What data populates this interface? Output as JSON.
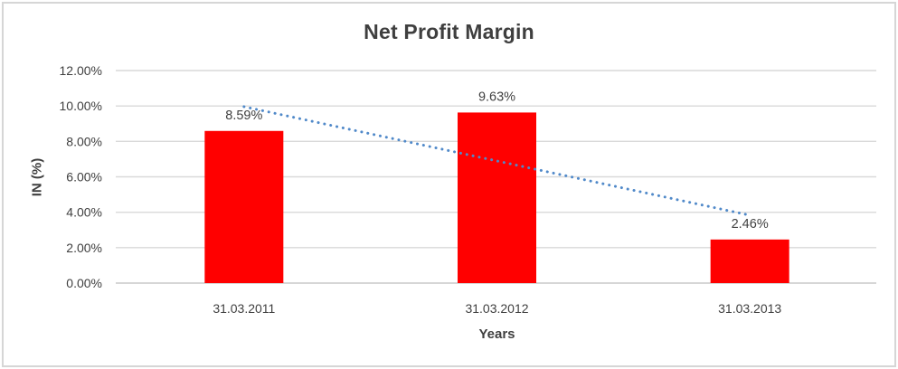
{
  "colors": {
    "bar": "#FF0000",
    "trendline": "#5089C9",
    "gridline": "#D9D9D9",
    "axis_line": "#C9C9C9",
    "text": "#3F3F3F",
    "border": "#D6D6D6",
    "background": "#FFFFFF"
  },
  "chart_data": {
    "type": "bar",
    "title": "Net Profit Margin",
    "xlabel": "Years",
    "ylabel": "IN (%)",
    "categories": [
      "31.03.2011",
      "31.03.2012",
      "31.03.2013"
    ],
    "values": [
      8.59,
      9.63,
      2.46
    ],
    "data_labels": [
      "8.59%",
      "9.63%",
      "2.46%"
    ],
    "ylim": [
      0,
      12
    ],
    "ytick_step": 2,
    "ytick_labels": [
      "0.00%",
      "2.00%",
      "4.00%",
      "6.00%",
      "8.00%",
      "10.00%",
      "12.00%"
    ],
    "grid": true,
    "legend": "none",
    "trendline": {
      "type": "linear",
      "style": "dotted",
      "start_value": 9.96,
      "end_value": 3.83
    }
  }
}
